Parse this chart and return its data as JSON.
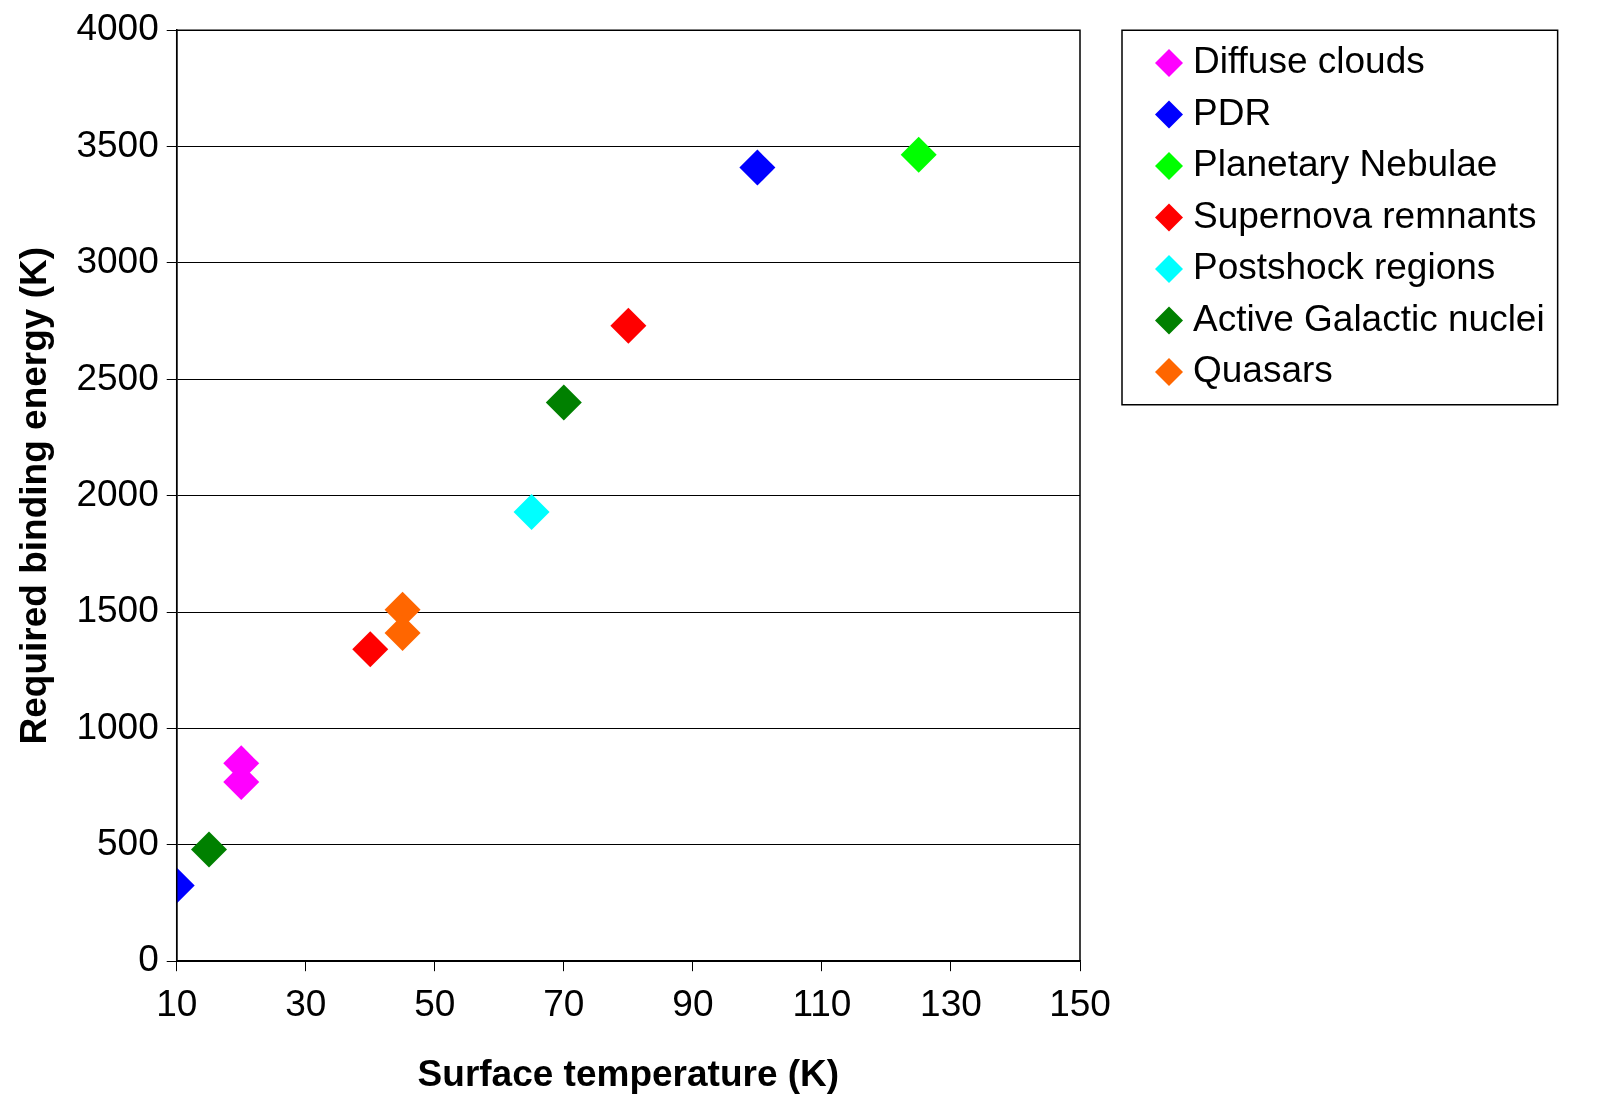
{
  "chart_data": {
    "type": "scatter",
    "xlabel": "Surface temperature (K)",
    "ylabel": "Required binding energy (K)",
    "xlim": [
      10,
      150
    ],
    "xticks": [
      10,
      30,
      50,
      70,
      90,
      110,
      130,
      150
    ],
    "ylim": [
      0,
      4000
    ],
    "yticks": [
      0,
      500,
      1000,
      1500,
      2000,
      2500,
      3000,
      3500,
      4000
    ],
    "grid": "y",
    "legend": "top right",
    "marker": "diamond",
    "series": [
      {
        "name": "Diffuse clouds",
        "color": "#ff00ff",
        "x": [
          20,
          20
        ],
        "values": [
          850,
          770
        ]
      },
      {
        "name": "PDR",
        "color": "#0000ff",
        "x": [
          10,
          100
        ],
        "values": [
          325,
          3410
        ]
      },
      {
        "name": "Planetary Nebulae",
        "color": "#00ff00",
        "x": [
          125
        ],
        "values": [
          3465
        ]
      },
      {
        "name": "Supernova remnants",
        "color": "#ff0000",
        "x": [
          40,
          80
        ],
        "values": [
          1340,
          2730
        ]
      },
      {
        "name": "Postshock regions",
        "color": "#00ffff",
        "x": [
          65
        ],
        "values": [
          1930
        ]
      },
      {
        "name": "Active Galactic nuclei",
        "color": "#008000",
        "x": [
          15,
          70
        ],
        "values": [
          480,
          2400
        ]
      },
      {
        "name": "Quasars",
        "color": "#ff6600",
        "x": [
          45,
          45
        ],
        "values": [
          1510,
          1410
        ]
      }
    ]
  }
}
